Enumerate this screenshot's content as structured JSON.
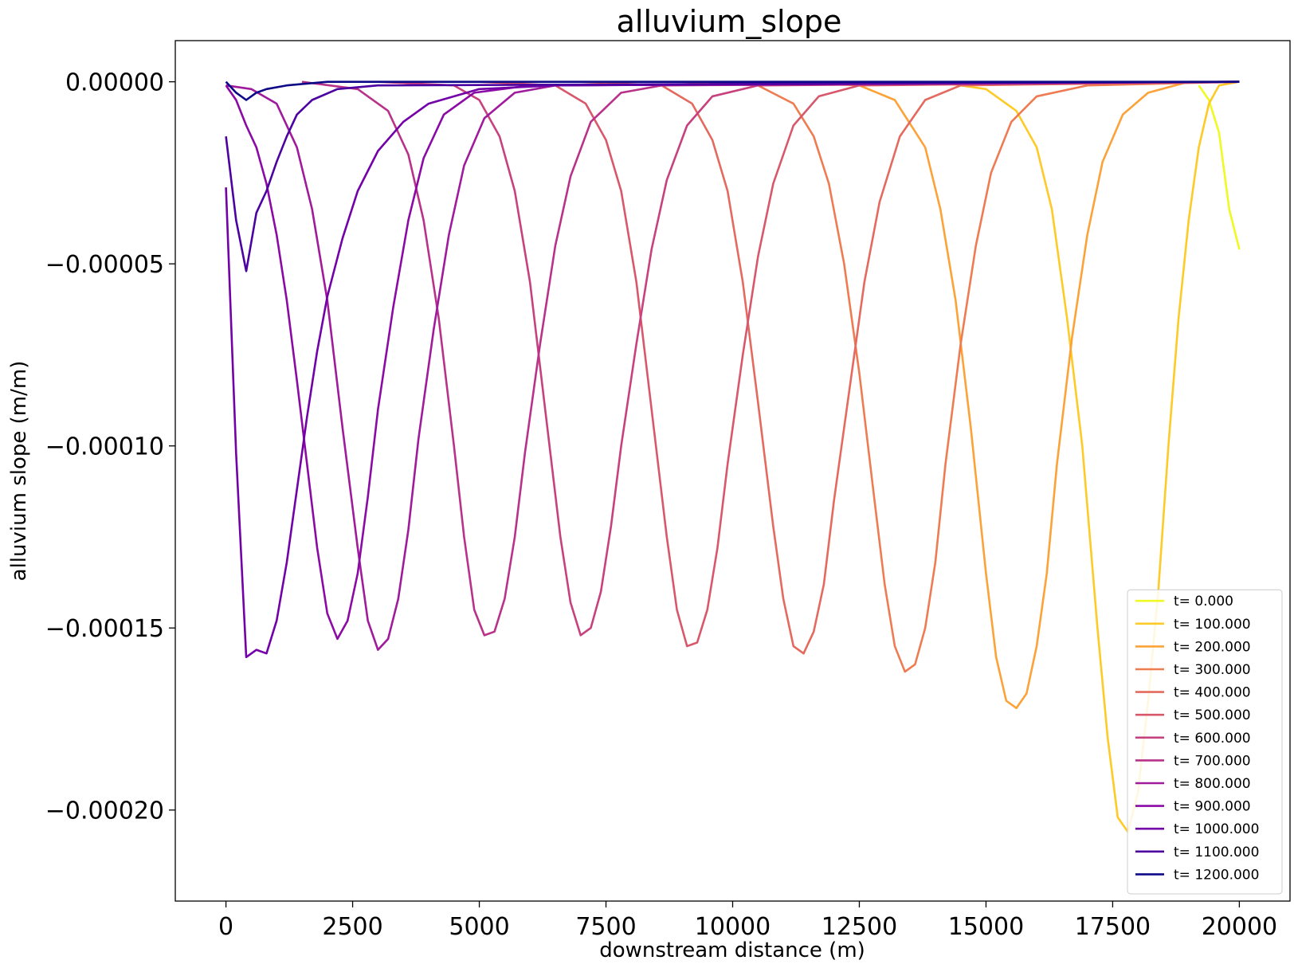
{
  "chart_data": {
    "type": "line",
    "title": "alluvium_slope",
    "xlabel": "downstream distance (m)",
    "ylabel": "alluvium slope (m/m)",
    "xlim": [
      -1000,
      21000
    ],
    "ylim": [
      -0.000225,
      1.13e-05
    ],
    "x_ticks": [
      0,
      2500,
      5000,
      7500,
      10000,
      12500,
      15000,
      17500,
      20000
    ],
    "x_tick_labels": [
      "0",
      "2500",
      "5000",
      "7500",
      "10000",
      "12500",
      "15000",
      "17500",
      "20000"
    ],
    "y_ticks": [
      0,
      -5e-05,
      -0.0001,
      -0.00015,
      -0.0002
    ],
    "y_tick_labels": [
      "0.00000",
      "−0.00005",
      "−0.00010",
      "−0.00015",
      "−0.00020"
    ],
    "grid": false,
    "legend_position": "lower-right",
    "series": [
      {
        "name": "t= 0.000",
        "color": "#f0f921",
        "points": [
          [
            19200,
            -1e-06
          ],
          [
            19400,
            -5e-06
          ],
          [
            19600,
            -1.4e-05
          ],
          [
            19800,
            -3.5e-05
          ],
          [
            20000,
            -4.6e-05
          ]
        ]
      },
      {
        "name": "t= 100.000",
        "color": "#fdca26",
        "points": [
          [
            14000,
            0
          ],
          [
            15000,
            -2e-06
          ],
          [
            15600,
            -8e-06
          ],
          [
            16000,
            -1.8e-05
          ],
          [
            16300,
            -3.5e-05
          ],
          [
            16600,
            -6.5e-05
          ],
          [
            16900,
            -0.0001
          ],
          [
            17200,
            -0.00015
          ],
          [
            17400,
            -0.00018
          ],
          [
            17600,
            -0.000202
          ],
          [
            17800,
            -0.000206
          ],
          [
            18000,
            -0.000195
          ],
          [
            18200,
            -0.00017
          ],
          [
            18400,
            -0.00014
          ],
          [
            18600,
            -0.0001
          ],
          [
            18800,
            -6.5e-05
          ],
          [
            19000,
            -3.8e-05
          ],
          [
            19200,
            -1.8e-05
          ],
          [
            19400,
            -6e-06
          ],
          [
            19600,
            -1e-06
          ],
          [
            20000,
            0
          ]
        ]
      },
      {
        "name": "t= 200.000",
        "color": "#fba238",
        "points": [
          [
            11000,
            0
          ],
          [
            12500,
            -1e-06
          ],
          [
            13200,
            -5e-06
          ],
          [
            13800,
            -1.8e-05
          ],
          [
            14100,
            -3.5e-05
          ],
          [
            14400,
            -6e-05
          ],
          [
            14700,
            -9.5e-05
          ],
          [
            15000,
            -0.000135
          ],
          [
            15200,
            -0.000158
          ],
          [
            15400,
            -0.00017
          ],
          [
            15600,
            -0.000172
          ],
          [
            15800,
            -0.000168
          ],
          [
            16000,
            -0.000155
          ],
          [
            16200,
            -0.000135
          ],
          [
            16400,
            -0.000105
          ],
          [
            16700,
            -7e-05
          ],
          [
            17000,
            -4.2e-05
          ],
          [
            17300,
            -2.2e-05
          ],
          [
            17700,
            -9e-06
          ],
          [
            18200,
            -3e-06
          ],
          [
            19000,
            0
          ],
          [
            20000,
            0
          ]
        ]
      },
      {
        "name": "t= 300.000",
        "color": "#ee7b51",
        "points": [
          [
            9000,
            0
          ],
          [
            10500,
            -1e-06
          ],
          [
            11200,
            -6e-06
          ],
          [
            11600,
            -1.5e-05
          ],
          [
            11900,
            -2.8e-05
          ],
          [
            12200,
            -5e-05
          ],
          [
            12500,
            -8e-05
          ],
          [
            12800,
            -0.000115
          ],
          [
            13000,
            -0.000138
          ],
          [
            13200,
            -0.000155
          ],
          [
            13400,
            -0.000162
          ],
          [
            13600,
            -0.00016
          ],
          [
            13800,
            -0.00015
          ],
          [
            14000,
            -0.000132
          ],
          [
            14200,
            -0.000105
          ],
          [
            14500,
            -7.2e-05
          ],
          [
            14800,
            -4.5e-05
          ],
          [
            15100,
            -2.5e-05
          ],
          [
            15500,
            -1.1e-05
          ],
          [
            16000,
            -4e-06
          ],
          [
            17000,
            -1e-06
          ],
          [
            20000,
            0
          ]
        ]
      },
      {
        "name": "t= 400.000",
        "color": "#e4695e",
        "points": [
          [
            7000,
            0
          ],
          [
            8600,
            -1e-06
          ],
          [
            9200,
            -6e-06
          ],
          [
            9600,
            -1.6e-05
          ],
          [
            9900,
            -3e-05
          ],
          [
            10200,
            -5.5e-05
          ],
          [
            10500,
            -8.8e-05
          ],
          [
            10800,
            -0.000122
          ],
          [
            11000,
            -0.000142
          ],
          [
            11200,
            -0.000155
          ],
          [
            11400,
            -0.000157
          ],
          [
            11600,
            -0.000151
          ],
          [
            11800,
            -0.000138
          ],
          [
            12000,
            -0.000115
          ],
          [
            12300,
            -8.5e-05
          ],
          [
            12600,
            -5.5e-05
          ],
          [
            12900,
            -3.3e-05
          ],
          [
            13300,
            -1.5e-05
          ],
          [
            13800,
            -5e-06
          ],
          [
            14500,
            -1e-06
          ],
          [
            20000,
            0
          ]
        ]
      },
      {
        "name": "t= 500.000",
        "color": "#d8576b",
        "points": [
          [
            5000,
            0
          ],
          [
            6500,
            -1e-06
          ],
          [
            7100,
            -6e-06
          ],
          [
            7500,
            -1.6e-05
          ],
          [
            7800,
            -3e-05
          ],
          [
            8100,
            -5.5e-05
          ],
          [
            8400,
            -9e-05
          ],
          [
            8700,
            -0.000125
          ],
          [
            8900,
            -0.000145
          ],
          [
            9100,
            -0.000155
          ],
          [
            9300,
            -0.000154
          ],
          [
            9500,
            -0.000145
          ],
          [
            9700,
            -0.000128
          ],
          [
            9900,
            -0.000105
          ],
          [
            10200,
            -7.5e-05
          ],
          [
            10500,
            -4.8e-05
          ],
          [
            10800,
            -2.8e-05
          ],
          [
            11200,
            -1.2e-05
          ],
          [
            11700,
            -4e-06
          ],
          [
            12500,
            -1e-06
          ],
          [
            20000,
            0
          ]
        ]
      },
      {
        "name": "t= 600.000",
        "color": "#c6417d",
        "points": [
          [
            3000,
            0
          ],
          [
            4500,
            -1e-06
          ],
          [
            5000,
            -5e-06
          ],
          [
            5400,
            -1.5e-05
          ],
          [
            5700,
            -3e-05
          ],
          [
            6000,
            -5.5e-05
          ],
          [
            6300,
            -9e-05
          ],
          [
            6600,
            -0.000125
          ],
          [
            6800,
            -0.000143
          ],
          [
            7000,
            -0.000152
          ],
          [
            7200,
            -0.00015
          ],
          [
            7400,
            -0.00014
          ],
          [
            7600,
            -0.000122
          ],
          [
            7800,
            -0.0001
          ],
          [
            8100,
            -7.2e-05
          ],
          [
            8400,
            -4.6e-05
          ],
          [
            8700,
            -2.7e-05
          ],
          [
            9100,
            -1.2e-05
          ],
          [
            9600,
            -4e-06
          ],
          [
            10500,
            -1e-06
          ],
          [
            20000,
            0
          ]
        ]
      },
      {
        "name": "t= 700.000",
        "color": "#b83289",
        "points": [
          [
            1500,
            0
          ],
          [
            2600,
            -2e-06
          ],
          [
            3200,
            -8e-06
          ],
          [
            3600,
            -2e-05
          ],
          [
            3900,
            -3.8e-05
          ],
          [
            4200,
            -6.5e-05
          ],
          [
            4500,
            -0.0001
          ],
          [
            4700,
            -0.000125
          ],
          [
            4900,
            -0.000145
          ],
          [
            5100,
            -0.000152
          ],
          [
            5300,
            -0.000151
          ],
          [
            5500,
            -0.000142
          ],
          [
            5700,
            -0.000125
          ],
          [
            5900,
            -0.000102
          ],
          [
            6200,
            -7.2e-05
          ],
          [
            6500,
            -4.5e-05
          ],
          [
            6800,
            -2.6e-05
          ],
          [
            7200,
            -1.1e-05
          ],
          [
            7800,
            -3e-06
          ],
          [
            8600,
            -1e-06
          ],
          [
            20000,
            0
          ]
        ]
      },
      {
        "name": "t= 800.000",
        "color": "#a01a9c",
        "points": [
          [
            0,
            -1e-06
          ],
          [
            500,
            -2e-06
          ],
          [
            1000,
            -6e-06
          ],
          [
            1400,
            -1.8e-05
          ],
          [
            1700,
            -3.5e-05
          ],
          [
            2000,
            -6e-05
          ],
          [
            2300,
            -9.5e-05
          ],
          [
            2600,
            -0.000128
          ],
          [
            2800,
            -0.000148
          ],
          [
            3000,
            -0.000156
          ],
          [
            3200,
            -0.000153
          ],
          [
            3400,
            -0.000142
          ],
          [
            3600,
            -0.000123
          ],
          [
            3800,
            -9.8e-05
          ],
          [
            4100,
            -6.8e-05
          ],
          [
            4400,
            -4.2e-05
          ],
          [
            4700,
            -2.3e-05
          ],
          [
            5100,
            -1e-05
          ],
          [
            5700,
            -3e-06
          ],
          [
            6500,
            -1e-06
          ],
          [
            20000,
            0
          ]
        ]
      },
      {
        "name": "t= 900.000",
        "color": "#8b0aa5",
        "points": [
          [
            0,
            -1e-06
          ],
          [
            200,
            -5e-06
          ],
          [
            400,
            -1.2e-05
          ],
          [
            600,
            -1.8e-05
          ],
          [
            800,
            -2.8e-05
          ],
          [
            1000,
            -4.2e-05
          ],
          [
            1200,
            -6e-05
          ],
          [
            1400,
            -8.2e-05
          ],
          [
            1600,
            -0.000105
          ],
          [
            1800,
            -0.000128
          ],
          [
            2000,
            -0.000146
          ],
          [
            2200,
            -0.000153
          ],
          [
            2400,
            -0.000148
          ],
          [
            2600,
            -0.000135
          ],
          [
            2800,
            -0.000114
          ],
          [
            3000,
            -9e-05
          ],
          [
            3300,
            -6.2e-05
          ],
          [
            3600,
            -3.8e-05
          ],
          [
            3900,
            -2.1e-05
          ],
          [
            4300,
            -9e-06
          ],
          [
            4900,
            -3e-06
          ],
          [
            6000,
            -1e-06
          ],
          [
            20000,
            0
          ]
        ]
      },
      {
        "name": "t= 1000.000",
        "color": "#7201a8",
        "points": [
          [
            0,
            -2.9e-05
          ],
          [
            200,
            -0.000102
          ],
          [
            400,
            -0.000158
          ],
          [
            600,
            -0.000156
          ],
          [
            800,
            -0.000157
          ],
          [
            1000,
            -0.000148
          ],
          [
            1200,
            -0.000132
          ],
          [
            1400,
            -0.000112
          ],
          [
            1600,
            -9.2e-05
          ],
          [
            1800,
            -7.4e-05
          ],
          [
            2000,
            -5.9e-05
          ],
          [
            2300,
            -4.3e-05
          ],
          [
            2600,
            -3e-05
          ],
          [
            3000,
            -1.9e-05
          ],
          [
            3500,
            -1.1e-05
          ],
          [
            4000,
            -6e-06
          ],
          [
            5000,
            -2e-06
          ],
          [
            6500,
            -1e-06
          ],
          [
            20000,
            0
          ]
        ]
      },
      {
        "name": "t= 1100.000",
        "color": "#4c02a1",
        "points": [
          [
            0,
            -1.5e-05
          ],
          [
            200,
            -3.8e-05
          ],
          [
            400,
            -5.2e-05
          ],
          [
            600,
            -3.6e-05
          ],
          [
            800,
            -3e-05
          ],
          [
            1000,
            -2.2e-05
          ],
          [
            1200,
            -1.5e-05
          ],
          [
            1400,
            -9e-06
          ],
          [
            1700,
            -5e-06
          ],
          [
            2200,
            -2e-06
          ],
          [
            3000,
            -1e-06
          ],
          [
            20000,
            0
          ]
        ]
      },
      {
        "name": "t= 1200.000",
        "color": "#0d0887",
        "points": [
          [
            0,
            0
          ],
          [
            200,
            -3e-06
          ],
          [
            400,
            -5e-06
          ],
          [
            600,
            -3e-06
          ],
          [
            800,
            -2e-06
          ],
          [
            1200,
            -1e-06
          ],
          [
            2000,
            0
          ],
          [
            20000,
            0
          ]
        ]
      }
    ]
  }
}
